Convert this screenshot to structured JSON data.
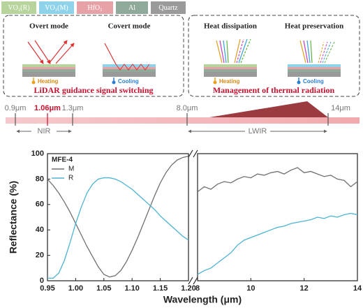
{
  "legend_materials": [
    {
      "label": "VO₂(R)",
      "color": "#b7d49c"
    },
    {
      "label": "VO₂(M)",
      "color": "#8fd3ea"
    },
    {
      "label": "HfO₂",
      "color": "#e7a2a8"
    },
    {
      "label": "Al",
      "color": "#8fa99a"
    },
    {
      "label": "Quartz",
      "color": "#9a9a9a"
    }
  ],
  "panels": [
    {
      "modes": [
        "Overt mode",
        "Covert mode"
      ],
      "states": [
        "Heating",
        "Cooling"
      ],
      "caption": "LiDAR guidance signal switching"
    },
    {
      "modes": [
        "Heat dissipation",
        "Heat preservation"
      ],
      "states": [
        "Heating",
        "Cooling"
      ],
      "caption": "Management of thermal radiation"
    }
  ],
  "spectrum": {
    "marks": [
      "0.9μm",
      "1.06μm",
      "1.3μm",
      "8.0μm",
      "14μm"
    ],
    "bands": [
      "NIR",
      "LWIR"
    ]
  },
  "chart_data": {
    "type": "line",
    "legend_title": "MFE-4",
    "xlabel": "Wavelength (μm)",
    "ylabel": "Reflectance (%)",
    "ylim": [
      0,
      100
    ],
    "yticks": [
      0,
      20,
      40,
      60,
      80,
      100
    ],
    "xlim": [
      0.95,
      1.2
    ],
    "xticks": [
      0.95,
      {
        "value": 1,
        "label": "1.00"
      },
      1.05,
      {
        "value": 1.1,
        "label": "1.10"
      },
      1.15,
      {
        "value": 1.2,
        "label": "1.20"
      }
    ],
    "x2lim": [
      8,
      14
    ],
    "x2ticks": [
      8,
      10,
      12,
      14
    ],
    "x": [
      0.95,
      0.96,
      0.97,
      0.98,
      0.99,
      1.0,
      1.01,
      1.02,
      1.03,
      1.04,
      1.05,
      1.06,
      1.07,
      1.08,
      1.09,
      1.1,
      1.11,
      1.12,
      1.13,
      1.14,
      1.15,
      1.16,
      1.17,
      1.18,
      1.19,
      1.2
    ],
    "x2": [
      8,
      8.25,
      8.5,
      8.75,
      9,
      9.25,
      9.5,
      9.75,
      10,
      10.25,
      10.5,
      10.75,
      11,
      11.25,
      11.5,
      11.75,
      12,
      12.25,
      12.5,
      12.75,
      13,
      13.25,
      13.5,
      13.75,
      14
    ],
    "series": [
      {
        "name": "M",
        "color": "#707070",
        "values": [
          80,
          75,
          69,
          62,
          54,
          45,
          36,
          27,
          19,
          11,
          5,
          3,
          4,
          8,
          15,
          24,
          34,
          45,
          56,
          67,
          77,
          85,
          91,
          95,
          97,
          98
        ],
        "values2": [
          70,
          74,
          72,
          76,
          78,
          77,
          80,
          82,
          81,
          84,
          83,
          85,
          86,
          84,
          87,
          89,
          85,
          86,
          84,
          82,
          83,
          80,
          79,
          74,
          78
        ]
      },
      {
        "name": "R",
        "color": "#4db3d3",
        "values": [
          2,
          2,
          6,
          16,
          30,
          45,
          58,
          69,
          76,
          80,
          81,
          81,
          80,
          78,
          75,
          72,
          68,
          64,
          60,
          56,
          51,
          47,
          43,
          39,
          35,
          32
        ],
        "values2": [
          5,
          8,
          10,
          14,
          18,
          22,
          28,
          32,
          34,
          36,
          38,
          40,
          42,
          43,
          45,
          46,
          47,
          48,
          50,
          49,
          51,
          50,
          52,
          53,
          52
        ]
      }
    ]
  }
}
